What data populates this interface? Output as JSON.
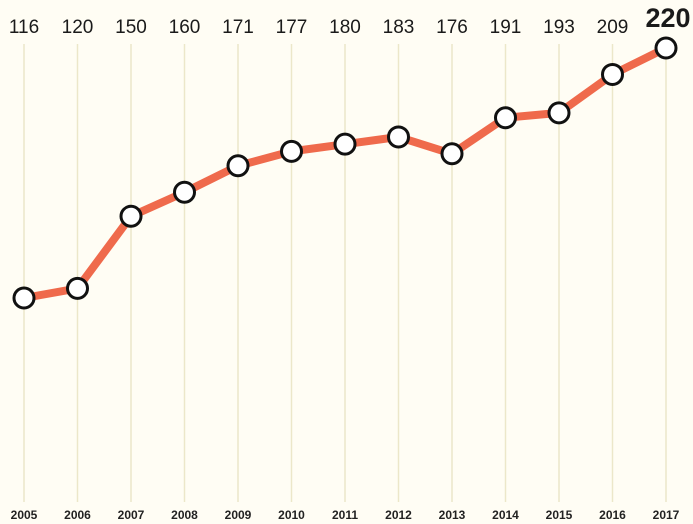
{
  "chart_data": {
    "type": "line",
    "categories": [
      "2005",
      "2006",
      "2007",
      "2008",
      "2009",
      "2010",
      "2011",
      "2012",
      "2013",
      "2014",
      "2015",
      "2016",
      "2017"
    ],
    "values": [
      116,
      120,
      150,
      160,
      171,
      177,
      180,
      183,
      176,
      191,
      193,
      209,
      220
    ],
    "color": "#ef6a4c",
    "grid": true
  }
}
